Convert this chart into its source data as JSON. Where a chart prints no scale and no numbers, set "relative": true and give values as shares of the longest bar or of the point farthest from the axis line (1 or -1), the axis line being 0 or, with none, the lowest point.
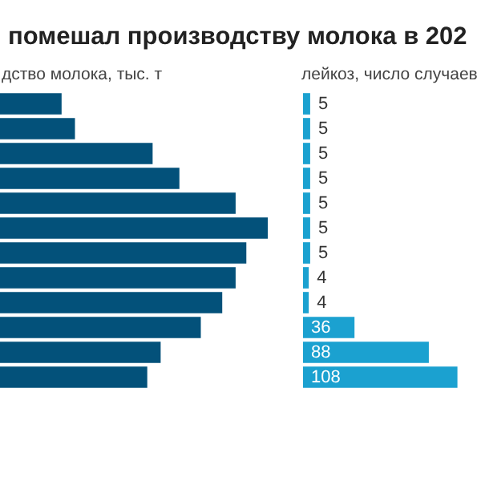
{
  "chart_data": [
    {
      "type": "bar",
      "orientation": "horizontal",
      "relative": true,
      "title": "помешал производству молока в 202",
      "xlabel": "дство молока, тыс. т",
      "categories": [
        null,
        null,
        null,
        null,
        null,
        null,
        null,
        null,
        null,
        null,
        null,
        null
      ],
      "color": "#03517a",
      "values": [
        0.23,
        0.28,
        0.57,
        0.67,
        0.88,
        1,
        0.92,
        0.88,
        0.83,
        0.75,
        0.6,
        0.55
      ]
    },
    {
      "type": "bar",
      "orientation": "horizontal",
      "xlabel": "лейкоз, число случаев",
      "categories": [
        null,
        null,
        null,
        null,
        null,
        null,
        null,
        null,
        null,
        null,
        null,
        null
      ],
      "color": "#1ba1d0",
      "data_labels": true,
      "values": [
        5,
        5,
        5,
        5,
        5,
        5,
        5,
        4,
        4,
        36,
        88,
        108
      ]
    }
  ]
}
